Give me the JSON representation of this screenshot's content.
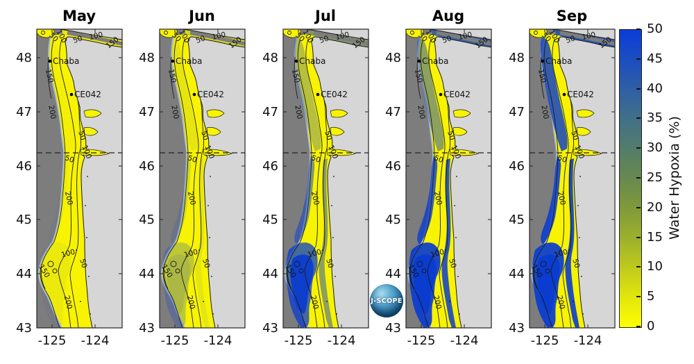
{
  "figure": {
    "background": "#ffffff"
  },
  "months": [
    {
      "label": "May",
      "overlays": {
        "south": 0.05,
        "core": 0.0,
        "mid": 0.04,
        "north": 0.02,
        "strait": 0.06,
        "fringe": 0.0
      }
    },
    {
      "label": "Jun",
      "overlays": {
        "south": 0.24,
        "core": 0.1,
        "mid": 0.15,
        "north": 0.07,
        "strait": 0.16,
        "fringe": 0.08
      }
    },
    {
      "label": "Jul",
      "overlays": {
        "south": 0.75,
        "core": 0.92,
        "mid": 0.5,
        "north": 0.28,
        "strait": 0.5,
        "fringe": 0.45
      }
    },
    {
      "label": "Aug",
      "overlays": {
        "south": 0.92,
        "core": 1.0,
        "mid": 0.8,
        "north": 0.45,
        "strait": 0.8,
        "fringe": 0.85
      }
    },
    {
      "label": "Sep",
      "overlays": {
        "south": 0.93,
        "core": 1.0,
        "mid": 0.88,
        "north": 0.82,
        "strait": 0.85,
        "fringe": 0.9
      }
    }
  ],
  "panel": {
    "y_ticks": [
      "48",
      "47",
      "46",
      "45",
      "44",
      "43"
    ],
    "x_ticks": [
      "-125",
      "-124"
    ],
    "stations": [
      {
        "name": "Chaba"
      },
      {
        "name": "CE042"
      }
    ],
    "contour_labels": [
      "50",
      "100",
      "150",
      "200"
    ]
  },
  "colorbar": {
    "title": "Water Hypoxia (%)",
    "ticks": [
      "50",
      "45",
      "40",
      "35",
      "30",
      "25",
      "20",
      "15",
      "10",
      "5",
      "0"
    ]
  },
  "logo": {
    "text": "J-SCOPE"
  },
  "colors": {
    "ocean": "#7d7d7d",
    "land": "#d6d6d6",
    "shelf_low": "#f8f303",
    "hypoxia_high": "#0a3ccf",
    "shelf_edge_fringe": "#a9bfd4",
    "contour": "#1a1a1a"
  },
  "chart_data": {
    "type": "heatmap",
    "title": "",
    "facets": [
      "May",
      "Jun",
      "Jul",
      "Aug",
      "Sep"
    ],
    "x": {
      "tick_labels": [
        -125,
        -124
      ],
      "range_lon": [
        -125.35,
        -123.35
      ]
    },
    "y": {
      "tick_labels": [
        48,
        47,
        46,
        45,
        44,
        43
      ],
      "range_lat": [
        43,
        48.5
      ]
    },
    "colorbar": {
      "label": "Water Hypoxia (%)",
      "range": [
        0,
        50
      ],
      "tick_step": 5,
      "low_color": "#fdff02",
      "high_color": "#0b3cd8"
    },
    "bathymetry_contours_m": [
      50,
      100,
      150,
      200
    ],
    "reference_dashed_line_lat": 46.25,
    "stations": [
      {
        "name": "Chaba",
        "approx_lat": 47.95,
        "approx_lon": -125.0
      },
      {
        "name": "CE042",
        "approx_lat": 47.33,
        "approx_lon": -124.5
      }
    ],
    "monthly_pattern": [
      {
        "month": "May",
        "shelf_hypoxia_percent_typical": 0,
        "high_zones": []
      },
      {
        "month": "Jun",
        "shelf_hypoxia_percent_typical": 5,
        "high_zones": [
          "faint patches near 44N (Heceta Bank)"
        ]
      },
      {
        "month": "Jul",
        "shelf_hypoxia_percent_typical": 25,
        "high_zones": [
          "Heceta Bank 43.5-44.5N",
          "outer shelf 44.5-46N"
        ]
      },
      {
        "month": "Aug",
        "shelf_hypoxia_percent_typical": 40,
        "high_zones": [
          "most of Oregon shelf 43-46N",
          "Juan de Fuca entrance"
        ]
      },
      {
        "month": "Sep",
        "shelf_hypoxia_percent_typical": 45,
        "high_zones": [
          "nearly entire shelf 43-48.4N except shallow nearshore/estuaries"
        ]
      }
    ]
  }
}
